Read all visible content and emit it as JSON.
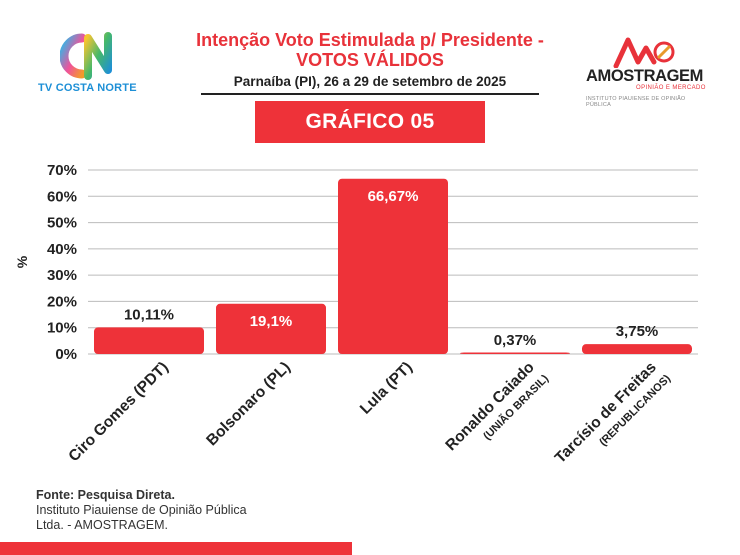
{
  "logo_left": {
    "text": "TV COSTA NORTE",
    "mark": "CN"
  },
  "header": {
    "title_line1": "Intenção Voto Estimulada p/ Presidente -",
    "title_line2": "VOTOS VÁLIDOS",
    "subtitle": "Parnaíba (PI), 26 a 29 de setembro de 2025",
    "badge": "GRÁFICO 05"
  },
  "logo_right": {
    "name": "AMOSTRAGEM",
    "tagline": "OPINIÃO E MERCADO",
    "institute": "INSTITUTO PIAUIENSE DE OPINIÃO PÚBLICA"
  },
  "colors": {
    "bar": "#ee3239",
    "accent": "#e8323a",
    "grid": "#bbbbbb",
    "text": "#222222"
  },
  "chart_data": {
    "type": "bar",
    "title": "Intenção Voto Estimulada p/ Presidente - VOTOS VÁLIDOS",
    "ylabel": "%",
    "xlabel": "",
    "ylim": [
      0,
      70
    ],
    "yticks": [
      0,
      10,
      20,
      30,
      40,
      50,
      60,
      70
    ],
    "ytick_labels": [
      "0%",
      "10%",
      "20%",
      "30%",
      "40%",
      "50%",
      "60%",
      "70%"
    ],
    "grid": true,
    "categories": [
      {
        "name": "Ciro Gomes (PDT)",
        "party": ""
      },
      {
        "name": "Bolsonaro (PL)",
        "party": ""
      },
      {
        "name": "Lula (PT)",
        "party": ""
      },
      {
        "name": "Ronaldo Caiado",
        "party": "(UNIÃO BRASIL)"
      },
      {
        "name": "Tarcísio de Freitas",
        "party": "(REPUBLICANOS)"
      }
    ],
    "values": [
      10.11,
      19.1,
      66.67,
      0.37,
      3.75
    ],
    "value_labels": [
      "10,11%",
      "19,1%",
      "66,67%",
      "0,37%",
      "3,75%"
    ],
    "label_inside": [
      false,
      true,
      true,
      false,
      false
    ]
  },
  "footer": {
    "source": "Fonte: Pesquisa Direta.",
    "institute": "Instituto Piauiense de Opinião Pública Ltda. - AMOSTRAGEM."
  }
}
